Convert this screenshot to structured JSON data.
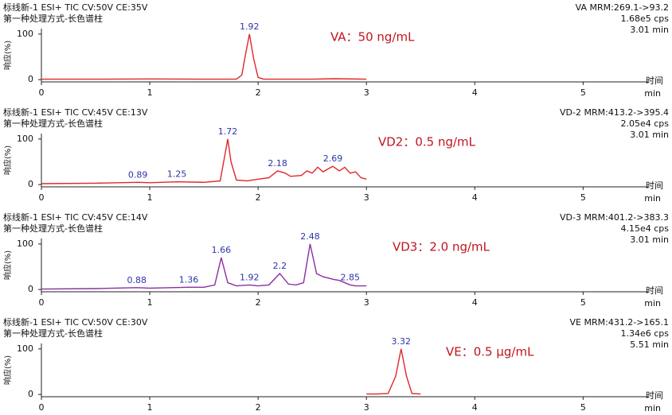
{
  "chart_data": [
    {
      "type": "line",
      "header_left": [
        "标线新-1 ESI+ TIC CV:50V CE:35V",
        "第一种处理方式-长色谱柱"
      ],
      "header_right": [
        "VA MRM:269.1->93.2",
        "1.68e5 cps",
        "3.01 min"
      ],
      "annotation": "VA：50 ng/mL",
      "ylabel": "响应(%)",
      "xlabel": "时间",
      "xunit": "min",
      "color": "#e0262a",
      "x": [
        0,
        0.5,
        1.0,
        1.5,
        1.8,
        1.85,
        1.88,
        1.92,
        1.96,
        2.0,
        2.05,
        2.5,
        2.7,
        3.0
      ],
      "values": [
        1,
        1,
        1.5,
        1,
        1,
        10,
        50,
        100,
        45,
        5,
        1,
        1,
        2,
        1
      ],
      "peaks": [
        {
          "x": 1.92,
          "y": 100
        }
      ],
      "xlim": [
        0,
        5.6
      ],
      "xticks": [
        0,
        1,
        2,
        3,
        4,
        5
      ],
      "ylim": [
        -5,
        112
      ],
      "yticks": [
        0,
        100
      ]
    },
    {
      "type": "line",
      "header_left": [
        "标线新-1 ESI+ TIC CV:45V CE:13V",
        "第一种处理方式-长色谱柱"
      ],
      "header_right": [
        "VD-2 MRM:413.2->395.4",
        "2.05e4 cps",
        "3.01 min"
      ],
      "annotation": "VD2：0.5 ng/mL",
      "ylabel": "响应(%)",
      "xlabel": "时间",
      "xunit": "min",
      "color": "#e0262a",
      "x": [
        0,
        0.5,
        0.89,
        1.0,
        1.25,
        1.5,
        1.65,
        1.69,
        1.72,
        1.75,
        1.8,
        1.9,
        2.0,
        2.1,
        2.18,
        2.25,
        2.3,
        2.4,
        2.45,
        2.5,
        2.55,
        2.6,
        2.65,
        2.69,
        2.75,
        2.8,
        2.85,
        2.9,
        2.95,
        3.0
      ],
      "values": [
        2,
        3,
        5,
        4,
        6,
        5,
        8,
        60,
        100,
        50,
        10,
        8,
        12,
        15,
        30,
        25,
        18,
        20,
        30,
        25,
        38,
        28,
        35,
        40,
        30,
        38,
        25,
        28,
        15,
        12
      ],
      "peaks": [
        {
          "x": 0.89,
          "y": 5
        },
        {
          "x": 1.25,
          "y": 6
        },
        {
          "x": 1.72,
          "y": 100
        },
        {
          "x": 2.18,
          "y": 30
        },
        {
          "x": 2.69,
          "y": 40
        }
      ],
      "xlim": [
        0,
        5.6
      ],
      "xticks": [
        0,
        1,
        2,
        3,
        4,
        5
      ],
      "ylim": [
        -5,
        112
      ],
      "yticks": [
        0,
        100
      ]
    },
    {
      "type": "line",
      "header_left": [
        "标线新-1 ESI+ TIC CV:45V CE:14V",
        "第一种处理方式-长色谱柱"
      ],
      "header_right": [
        "VD-3 MRM:401.2->383.3",
        "4.15e4 cps",
        "3.01 min"
      ],
      "annotation": "VD3：2.0 ng/mL",
      "ylabel": "响应(%)",
      "xlabel": "时间",
      "xunit": "min",
      "color": "#8b2ea3",
      "x": [
        0,
        0.5,
        0.88,
        1.0,
        1.36,
        1.5,
        1.6,
        1.66,
        1.72,
        1.8,
        1.92,
        2.0,
        2.1,
        2.2,
        2.28,
        2.35,
        2.42,
        2.48,
        2.54,
        2.6,
        2.65,
        2.7,
        2.75,
        2.85,
        2.9,
        3.0
      ],
      "values": [
        1,
        2,
        4,
        3,
        5,
        5,
        10,
        70,
        15,
        8,
        10,
        8,
        10,
        35,
        12,
        10,
        15,
        100,
        35,
        28,
        25,
        22,
        20,
        10,
        8,
        8
      ],
      "peaks": [
        {
          "x": 0.88,
          "y": 4
        },
        {
          "x": 1.36,
          "y": 5
        },
        {
          "x": 1.66,
          "y": 70
        },
        {
          "x": 1.92,
          "y": 10
        },
        {
          "x": 2.2,
          "y": 35
        },
        {
          "x": 2.48,
          "y": 100
        },
        {
          "x": 2.85,
          "y": 10
        }
      ],
      "xlim": [
        0,
        5.6
      ],
      "xticks": [
        0,
        1,
        2,
        3,
        4,
        5
      ],
      "ylim": [
        -5,
        112
      ],
      "yticks": [
        0,
        100
      ]
    },
    {
      "type": "line",
      "header_left": [
        "标线新-1 ESI+ TIC CV:50V CE:30V",
        "第一种处理方式-长色谱柱"
      ],
      "header_right": [
        "VE MRM:431.2->165.1",
        "1.34e6 cps",
        "5.51 min"
      ],
      "annotation": "VE：0.5 μg/mL",
      "ylabel": "响应(%)",
      "xlabel": "时间",
      "xunit": "min",
      "color": "#e0262a",
      "x": [
        3.0,
        3.1,
        3.2,
        3.27,
        3.32,
        3.37,
        3.42,
        3.5
      ],
      "values": [
        1,
        1,
        2,
        40,
        100,
        40,
        2,
        1
      ],
      "peaks": [
        {
          "x": 3.32,
          "y": 100
        }
      ],
      "xlim": [
        0,
        5.6
      ],
      "xticks": [
        0,
        1,
        2,
        3,
        4,
        5
      ],
      "ylim": [
        -5,
        112
      ],
      "yticks": [
        0,
        100
      ]
    }
  ]
}
